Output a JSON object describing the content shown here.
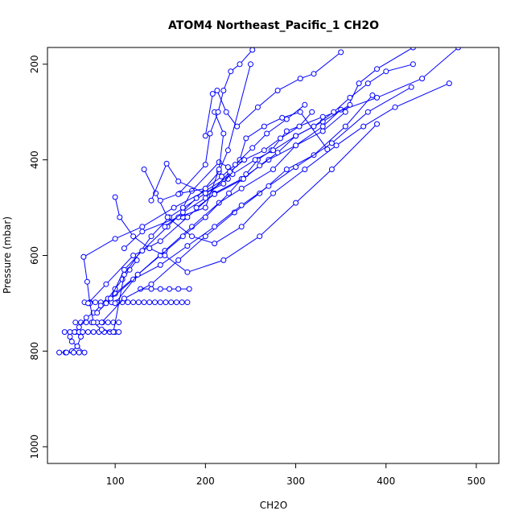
{
  "chart_data": {
    "type": "line",
    "title": "ATOM4 Northeast_Pacific_1 CH2O",
    "xlabel": "CH2O",
    "ylabel": "Pressure (mbar)",
    "xlim": [
      25,
      525
    ],
    "ylim": [
      1035,
      165
    ],
    "y_reversed": true,
    "x_ticks": [
      100,
      200,
      300,
      400,
      500
    ],
    "y_ticks": [
      200,
      400,
      600,
      800,
      1000
    ],
    "grid": false,
    "legend": "none",
    "color": "#0000ff",
    "series": [
      {
        "x": [
          38,
          45,
          52,
          58,
          62,
          56,
          50,
          44
        ],
        "y": [
          803,
          803,
          800,
          790,
          770,
          760,
          760,
          760
        ]
      },
      {
        "x": [
          46,
          54,
          60,
          66,
          58,
          52,
          50
        ],
        "y": [
          803,
          803,
          803,
          803,
          790,
          780,
          770
        ]
      },
      {
        "x": [
          55,
          60,
          64,
          70,
          76,
          82,
          88,
          94,
          100,
          104
        ],
        "y": [
          760,
          760,
          760,
          760,
          760,
          760,
          760,
          760,
          760,
          760
        ]
      },
      {
        "x": [
          56,
          62,
          68,
          74,
          80,
          86,
          92,
          98,
          104
        ],
        "y": [
          740,
          740,
          740,
          740,
          740,
          740,
          740,
          740,
          740
        ]
      },
      {
        "x": [
          66,
          72,
          78,
          84,
          90,
          96,
          102,
          108,
          114,
          120,
          126,
          132,
          138,
          144,
          150,
          156,
          162,
          168,
          174,
          180
        ],
        "y": [
          698,
          698,
          698,
          698,
          698,
          698,
          698,
          698,
          698,
          698,
          698,
          698,
          698,
          698,
          698,
          698,
          698,
          698,
          698,
          698
        ]
      },
      {
        "x": [
          128,
          140,
          150,
          160,
          170,
          182
        ],
        "y": [
          670,
          670,
          670,
          670,
          670,
          670
        ]
      },
      {
        "x": [
          60,
          68,
          76,
          84,
          92,
          100,
          108,
          116,
          124
        ],
        "y": [
          750,
          730,
          720,
          705,
          690,
          670,
          650,
          630,
          610
        ]
      },
      {
        "x": [
          65,
          69,
          72,
          76,
          85,
          98,
          110,
          140,
          160,
          200,
          225,
          225,
          215,
          185,
          175,
          175
        ],
        "y": [
          603,
          655,
          700,
          740,
          755,
          760,
          640,
          560,
          520,
          470,
          440,
          415,
          405,
          465,
          500,
          520
        ]
      },
      {
        "x": [
          70,
          90,
          120,
          150,
          180,
          210,
          240,
          270,
          300,
          330,
          355,
          370,
          390,
          430
        ],
        "y": [
          700,
          660,
          600,
          570,
          520,
          470,
          440,
          400,
          370,
          340,
          300,
          240,
          210,
          165
        ]
      },
      {
        "x": [
          80,
          100,
          125,
          155,
          185,
          215,
          240,
          275,
          300,
          330,
          350
        ],
        "y": [
          720,
          680,
          640,
          590,
          540,
          490,
          460,
          420,
          370,
          330,
          295
        ]
      },
      {
        "x": [
          85,
          110,
          140,
          170,
          200,
          232,
          260,
          290,
          320,
          355,
          385
        ],
        "y": [
          740,
          690,
          660,
          610,
          560,
          510,
          470,
          420,
          390,
          330,
          265
        ]
      },
      {
        "x": [
          90,
          120,
          150,
          180,
          210,
          240,
          270,
          300,
          340,
          380,
          428
        ],
        "y": [
          700,
          650,
          620,
          580,
          540,
          495,
          455,
          415,
          365,
          300,
          248
        ]
      },
      {
        "x": [
          95,
          110,
          130,
          158,
          190,
          215,
          225,
          250
        ],
        "y": [
          690,
          630,
          590,
          540,
          480,
          425,
          380,
          200
        ]
      },
      {
        "x": [
          100,
          125,
          150,
          175,
          200,
          226,
          245,
          258,
          273,
          290,
          330,
          390,
          440,
          480
        ],
        "y": [
          700,
          640,
          600,
          560,
          520,
          470,
          430,
          400,
          380,
          340,
          310,
          270,
          230,
          165
        ]
      },
      {
        "x": [
          65,
          100,
          130,
          165,
          200,
          230,
          255,
          275,
          300,
          330,
          360
        ],
        "y": [
          603,
          565,
          540,
          500,
          465,
          430,
          400,
          380,
          350,
          320,
          285
        ]
      },
      {
        "x": [
          100,
          105,
          120,
          138,
          155,
          180,
          220,
          260,
          300,
          340,
          390
        ],
        "y": [
          478,
          520,
          560,
          585,
          600,
          635,
          610,
          560,
          490,
          420,
          325
        ]
      },
      {
        "x": [
          110,
          130,
          170,
          200,
          215,
          220,
          210
        ],
        "y": [
          585,
          550,
          520,
          500,
          420,
          345,
          300
        ]
      },
      {
        "x": [
          132,
          145,
          158,
          185,
          210,
          240,
          275,
          310,
          345,
          375,
          410,
          470
        ],
        "y": [
          420,
          470,
          520,
          560,
          575,
          540,
          470,
          420,
          370,
          330,
          290,
          240
        ]
      },
      {
        "x": [
          140,
          157,
          170,
          200,
          220,
          238,
          245,
          265,
          285,
          305,
          335
        ],
        "y": [
          485,
          408,
          445,
          470,
          450,
          400,
          355,
          330,
          312,
          300,
          378
        ]
      },
      {
        "x": [
          150,
          172,
          200,
          218,
          233,
          252,
          268,
          290,
          310
        ],
        "y": [
          485,
          470,
          460,
          435,
          410,
          375,
          345,
          315,
          285
        ]
      },
      {
        "x": [
          170,
          200,
          205,
          214,
          220,
          228,
          238,
          252
        ],
        "y": [
          472,
          410,
          345,
          300,
          255,
          215,
          200,
          170
        ]
      },
      {
        "x": [
          200,
          208,
          213,
          223,
          235,
          258,
          280,
          305,
          320,
          350
        ],
        "y": [
          350,
          262,
          255,
          300,
          330,
          290,
          255,
          230,
          220,
          175
        ]
      },
      {
        "x": [
          155,
          175,
          200,
          227,
          243,
          265,
          283,
          304,
          318
        ],
        "y": [
          540,
          510,
          480,
          425,
          400,
          380,
          355,
          330,
          300
        ]
      },
      {
        "x": [
          190,
          210,
          242,
          260,
          280,
          300,
          320,
          342,
          360,
          380,
          400,
          430
        ],
        "y": [
          500,
          472,
          440,
          412,
          385,
          350,
          330,
          300,
          270,
          240,
          215,
          200
        ]
      }
    ]
  }
}
